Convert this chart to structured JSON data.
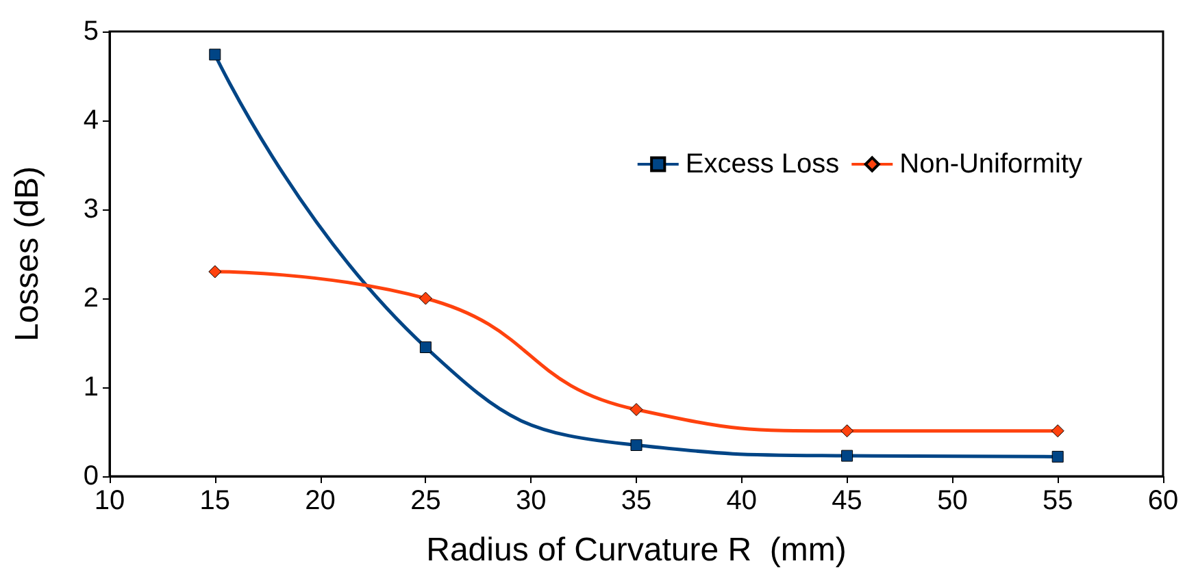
{
  "chart_data": {
    "type": "line",
    "xlabel": "Radius of Curvature R  (mm)",
    "ylabel": "Losses (dB)",
    "x": [
      15,
      25,
      35,
      45,
      55
    ],
    "series": [
      {
        "name": "Excess Loss",
        "color": "#004586",
        "marker": "square",
        "values": [
          4.74,
          1.45,
          0.35,
          0.23,
          0.22
        ]
      },
      {
        "name": "Non-Uniformity",
        "color": "#ff420e",
        "marker": "diamond",
        "values": [
          2.3,
          2.0,
          0.75,
          0.51,
          0.51
        ]
      }
    ],
    "xlim": [
      10,
      60
    ],
    "xticks": [
      10,
      15,
      20,
      25,
      30,
      35,
      40,
      45,
      50,
      55,
      60
    ],
    "ylim": [
      0,
      5
    ],
    "yticks": [
      0,
      1,
      2,
      3,
      4,
      5
    ],
    "grid": false,
    "legend": "top right",
    "line_style": "solid"
  }
}
